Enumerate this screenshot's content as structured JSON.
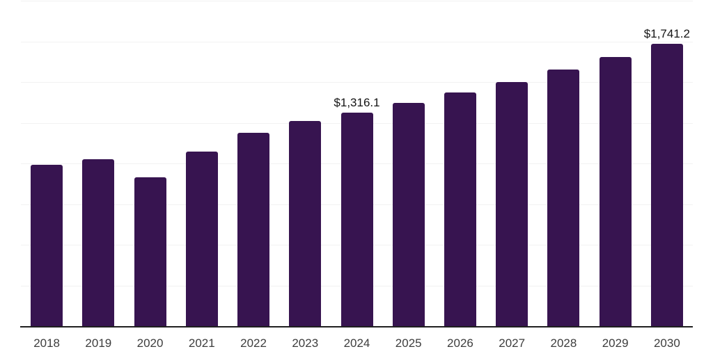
{
  "chart_data": {
    "type": "bar",
    "categories": [
      "2018",
      "2019",
      "2020",
      "2021",
      "2022",
      "2023",
      "2024",
      "2025",
      "2026",
      "2027",
      "2028",
      "2029",
      "2030"
    ],
    "values": [
      994,
      1032,
      917,
      1079,
      1194,
      1267,
      1316.1,
      1378,
      1440,
      1506,
      1580,
      1659,
      1741.2
    ],
    "data_labels": [
      null,
      null,
      null,
      null,
      null,
      null,
      "$1,316.1",
      null,
      null,
      null,
      null,
      null,
      "$1,741.2"
    ],
    "title": "",
    "xlabel": "",
    "ylabel": "",
    "ylim": [
      0,
      2000
    ],
    "grid_step": 250,
    "grid": true,
    "legend": "none",
    "y_tick_labels_visible": false
  },
  "style": {
    "bar_color": "#371450",
    "grid_color": "#f2f2f2",
    "axis_color": "#1f1f1f",
    "tick_label_color": "#3d3d3d",
    "data_label_color": "#141414",
    "background_color": "#ffffff"
  }
}
